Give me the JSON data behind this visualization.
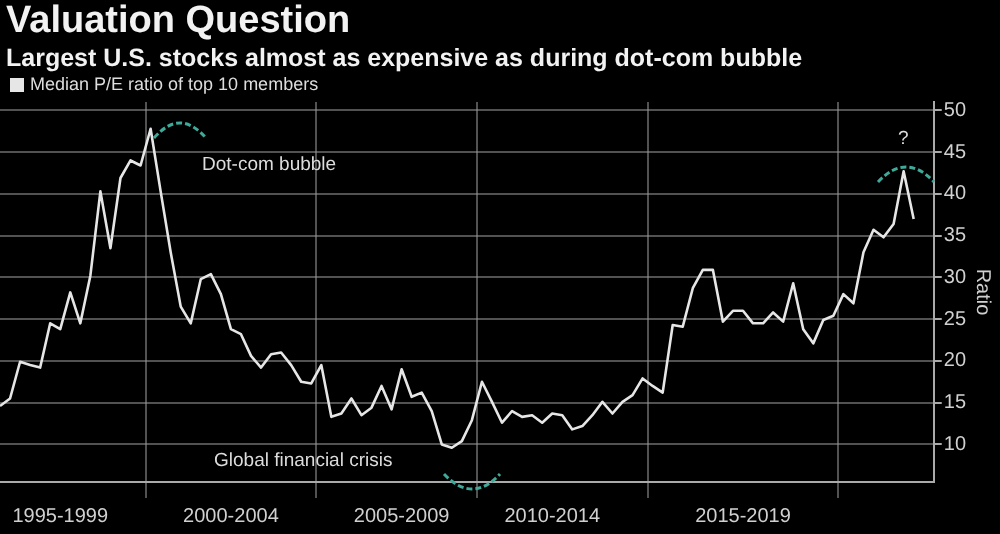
{
  "chart_data": {
    "type": "line",
    "title": "Valuation Question",
    "subtitle": "Largest U.S. stocks almost as expensive as during dot-com bubble",
    "ylabel": "Ratio",
    "categories": [
      null,
      null,
      null,
      null,
      null,
      null,
      "1995-1999",
      null,
      null,
      null,
      null,
      null,
      null,
      null,
      null,
      null,
      null,
      null,
      null,
      null,
      null,
      null,
      null,
      "2000-2004",
      null,
      null,
      null,
      null,
      null,
      null,
      null,
      null,
      null,
      null,
      null,
      null,
      null,
      null,
      null,
      null,
      "2005-2009",
      null,
      null,
      null,
      null,
      null,
      null,
      null,
      null,
      null,
      null,
      null,
      null,
      null,
      null,
      "2010-2014",
      null,
      null,
      null,
      null,
      null,
      null,
      null,
      null,
      null,
      null,
      null,
      null,
      null,
      null,
      null,
      null,
      null,
      null,
      "2015-2019",
      null,
      null,
      null,
      null,
      null,
      null,
      null,
      null,
      null,
      null,
      null,
      null,
      null,
      null,
      null,
      null,
      null
    ],
    "series": [
      {
        "name": "Median P/E ratio of top 10 members",
        "color": "#e6e6e6",
        "values": [
          14.6,
          15.5,
          19.9,
          19.5,
          19.2,
          24.5,
          23.8,
          28.2,
          24.5,
          30.2,
          40.3,
          33.5,
          41.9,
          44.0,
          43.4,
          47.8,
          40.3,
          33.0,
          26.5,
          24.5,
          29.8,
          30.4,
          28.0,
          23.8,
          23.2,
          20.6,
          19.2,
          20.8,
          21.0,
          19.5,
          17.5,
          17.3,
          19.5,
          13.3,
          13.7,
          15.5,
          13.5,
          14.4,
          17.0,
          14.2,
          19.0,
          15.7,
          16.2,
          14.0,
          10.0,
          9.6,
          10.4,
          12.9,
          17.5,
          15.1,
          12.6,
          14.0,
          13.3,
          13.5,
          12.6,
          13.7,
          13.5,
          11.8,
          12.2,
          13.5,
          15.1,
          13.7,
          15.1,
          15.9,
          17.9,
          17.0,
          16.2,
          24.3,
          24.1,
          28.7,
          30.9,
          30.9,
          24.7,
          26.0,
          26.0,
          24.5,
          24.5,
          25.8,
          24.7,
          29.3,
          23.8,
          22.1,
          24.9,
          25.4,
          28.0,
          26.9,
          33.0,
          35.7,
          34.8,
          36.4,
          42.7,
          37.0
        ]
      }
    ],
    "ylim": [
      5.5,
      51
    ],
    "yticks": [
      10,
      15,
      20,
      25,
      30,
      35,
      40,
      45,
      50
    ],
    "grid": true,
    "legend": "top left",
    "marker": "none",
    "line_style": "solid",
    "annotations": [
      "Dot-com bubble",
      "Global financial crisis",
      "?"
    ]
  }
}
